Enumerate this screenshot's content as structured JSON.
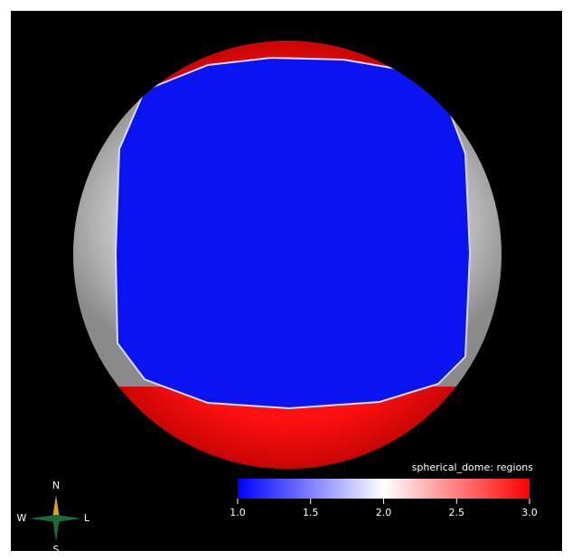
{
  "colorbar": {
    "title": "spherical_dome: regions",
    "range": [
      1,
      3
    ],
    "ticks": [
      {
        "value": 1,
        "label": "1.0"
      },
      {
        "value": 1.5,
        "label": "1.5"
      },
      {
        "value": 2,
        "label": "2.0"
      },
      {
        "value": 2.5,
        "label": "2.5"
      },
      {
        "value": 3,
        "label": "3.0"
      }
    ]
  },
  "compass": {
    "north": "N",
    "south": "S",
    "west": "W",
    "east": "L"
  }
}
